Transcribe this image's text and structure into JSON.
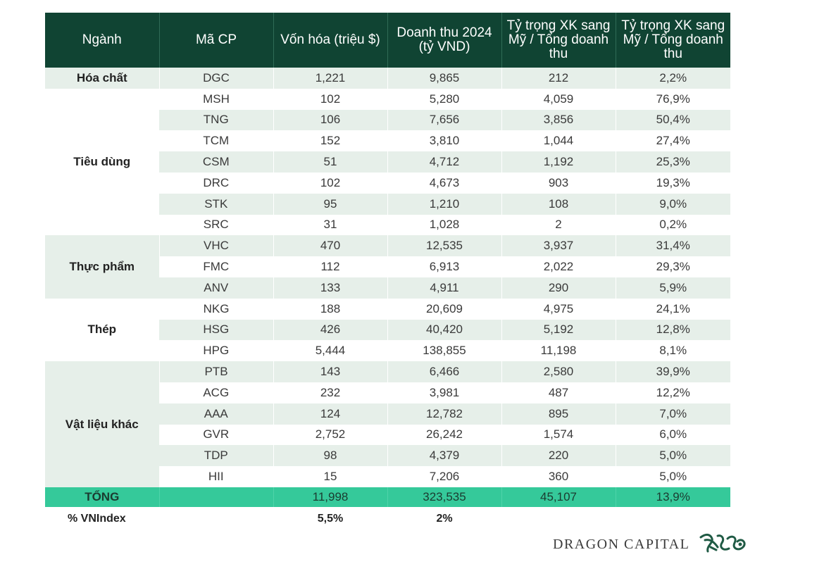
{
  "headers": [
    "Ngành",
    "Mã CP",
    "Vốn hóa (triệu $)",
    "Doanh thu 2024 (tỷ VND)",
    "Tỷ trọng XK sang Mỹ / Tổng doanh thu",
    "Tỷ trọng XK sang Mỹ / Tổng doanh thu"
  ],
  "groups": [
    {
      "name": "Hóa chất",
      "rows": [
        {
          "ticker": "DGC",
          "cap": "1,221",
          "revenue": "9,865",
          "export": "212",
          "share": "2,2%"
        }
      ]
    },
    {
      "name": "Tiêu dùng",
      "rows": [
        {
          "ticker": "MSH",
          "cap": "102",
          "revenue": "5,280",
          "export": "4,059",
          "share": "76,9%"
        },
        {
          "ticker": "TNG",
          "cap": "106",
          "revenue": "7,656",
          "export": "3,856",
          "share": "50,4%"
        },
        {
          "ticker": "TCM",
          "cap": "152",
          "revenue": "3,810",
          "export": "1,044",
          "share": "27,4%"
        },
        {
          "ticker": "CSM",
          "cap": "51",
          "revenue": "4,712",
          "export": "1,192",
          "share": "25,3%"
        },
        {
          "ticker": "DRC",
          "cap": "102",
          "revenue": "4,673",
          "export": "903",
          "share": "19,3%"
        },
        {
          "ticker": "STK",
          "cap": "95",
          "revenue": "1,210",
          "export": "108",
          "share": "9,0%"
        },
        {
          "ticker": "SRC",
          "cap": "31",
          "revenue": "1,028",
          "export": "2",
          "share": "0,2%"
        }
      ]
    },
    {
      "name": "Thực phẩm",
      "rows": [
        {
          "ticker": "VHC",
          "cap": "470",
          "revenue": "12,535",
          "export": "3,937",
          "share": "31,4%"
        },
        {
          "ticker": "FMC",
          "cap": "112",
          "revenue": "6,913",
          "export": "2,022",
          "share": "29,3%"
        },
        {
          "ticker": "ANV",
          "cap": "133",
          "revenue": "4,911",
          "export": "290",
          "share": "5,9%"
        }
      ]
    },
    {
      "name": "Thép",
      "rows": [
        {
          "ticker": "NKG",
          "cap": "188",
          "revenue": "20,609",
          "export": "4,975",
          "share": "24,1%"
        },
        {
          "ticker": "HSG",
          "cap": "426",
          "revenue": "40,420",
          "export": "5,192",
          "share": "12,8%"
        },
        {
          "ticker": "HPG",
          "cap": "5,444",
          "revenue": "138,855",
          "export": "11,198",
          "share": "8,1%"
        }
      ]
    },
    {
      "name": "Vật liệu khác",
      "rows": [
        {
          "ticker": "PTB",
          "cap": "143",
          "revenue": "6,466",
          "export": "2,580",
          "share": "39,9%"
        },
        {
          "ticker": "ACG",
          "cap": "232",
          "revenue": "3,981",
          "export": "487",
          "share": "12,2%"
        },
        {
          "ticker": "AAA",
          "cap": "124",
          "revenue": "12,782",
          "export": "895",
          "share": "7,0%"
        },
        {
          "ticker": "GVR",
          "cap": "2,752",
          "revenue": "26,242",
          "export": "1,574",
          "share": "6,0%"
        },
        {
          "ticker": "TDP",
          "cap": "98",
          "revenue": "4,379",
          "export": "220",
          "share": "5,0%"
        },
        {
          "ticker": "HII",
          "cap": "15",
          "revenue": "7,206",
          "export": "360",
          "share": "5,0%"
        }
      ]
    }
  ],
  "total": {
    "label": "TỔNG",
    "ticker": "",
    "cap": "11,998",
    "revenue": "323,535",
    "export": "45,107",
    "share": "13,9%"
  },
  "vnindex": {
    "label": "% VNIndex",
    "cap": "5,5%",
    "revenue": "2%"
  },
  "brand": {
    "name": "DRAGON CAPITAL",
    "logo_icon": "dragon-logo-icon"
  },
  "colors": {
    "header_bg": "#104433",
    "stripe": "#e6efe9",
    "total_bg": "#35c99a"
  }
}
